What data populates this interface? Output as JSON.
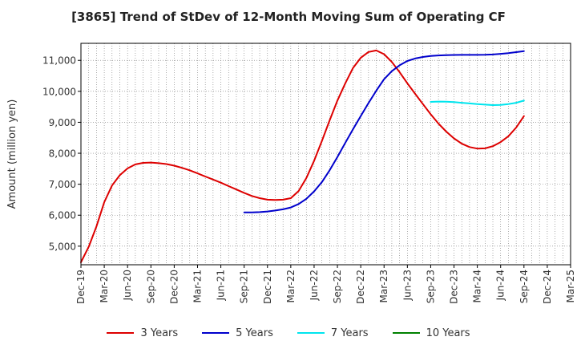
{
  "chart_data": {
    "type": "line",
    "title": "[3865]  Trend of StDev of 12-Month Moving Sum of Operating CF",
    "xlabel": "",
    "ylabel": "Amount (million yen)",
    "ylim": [
      4400,
      11550
    ],
    "xlim": [
      "2019-12",
      "2025-03"
    ],
    "y_ticks": [
      5000,
      6000,
      7000,
      8000,
      9000,
      10000,
      11000
    ],
    "y_tick_labels": [
      "5,000",
      "6,000",
      "7,000",
      "8,000",
      "9,000",
      "10,000",
      "11,000"
    ],
    "x_tick_labels": [
      "Dec-19",
      "Mar-20",
      "Jun-20",
      "Sep-20",
      "Dec-20",
      "Mar-21",
      "Jun-21",
      "Sep-21",
      "Dec-21",
      "Mar-22",
      "Jun-22",
      "Sep-22",
      "Dec-22",
      "Mar-23",
      "Jun-23",
      "Sep-23",
      "Dec-23",
      "Mar-24",
      "Jun-24",
      "Sep-24",
      "Dec-24",
      "Mar-25"
    ],
    "grid": true,
    "legend_position": "bottom",
    "series": [
      {
        "name": "3 Years",
        "color": "#dd0000",
        "points": [
          [
            "2019-12",
            4480
          ],
          [
            "2020-01",
            4980
          ],
          [
            "2020-02",
            5640
          ],
          [
            "2020-03",
            6420
          ],
          [
            "2020-04",
            6960
          ],
          [
            "2020-05",
            7290
          ],
          [
            "2020-06",
            7510
          ],
          [
            "2020-07",
            7640
          ],
          [
            "2020-08",
            7690
          ],
          [
            "2020-09",
            7700
          ],
          [
            "2020-10",
            7680
          ],
          [
            "2020-11",
            7650
          ],
          [
            "2020-12",
            7600
          ],
          [
            "2021-01",
            7530
          ],
          [
            "2021-02",
            7450
          ],
          [
            "2021-03",
            7350
          ],
          [
            "2021-04",
            7250
          ],
          [
            "2021-05",
            7150
          ],
          [
            "2021-06",
            7050
          ],
          [
            "2021-07",
            6940
          ],
          [
            "2021-08",
            6830
          ],
          [
            "2021-09",
            6720
          ],
          [
            "2021-10",
            6620
          ],
          [
            "2021-11",
            6550
          ],
          [
            "2021-12",
            6500
          ],
          [
            "2022-01",
            6490
          ],
          [
            "2022-02",
            6500
          ],
          [
            "2022-03",
            6550
          ],
          [
            "2022-04",
            6780
          ],
          [
            "2022-05",
            7200
          ],
          [
            "2022-06",
            7760
          ],
          [
            "2022-07",
            8400
          ],
          [
            "2022-08",
            9060
          ],
          [
            "2022-09",
            9700
          ],
          [
            "2022-10",
            10250
          ],
          [
            "2022-11",
            10750
          ],
          [
            "2022-12",
            11080
          ],
          [
            "2023-01",
            11270
          ],
          [
            "2023-02",
            11320
          ],
          [
            "2023-03",
            11200
          ],
          [
            "2023-04",
            10950
          ],
          [
            "2023-05",
            10620
          ],
          [
            "2023-06",
            10260
          ],
          [
            "2023-07",
            9920
          ],
          [
            "2023-08",
            9590
          ],
          [
            "2023-09",
            9260
          ],
          [
            "2023-10",
            8960
          ],
          [
            "2023-11",
            8700
          ],
          [
            "2023-12",
            8480
          ],
          [
            "2024-01",
            8310
          ],
          [
            "2024-02",
            8200
          ],
          [
            "2024-03",
            8150
          ],
          [
            "2024-04",
            8160
          ],
          [
            "2024-05",
            8230
          ],
          [
            "2024-06",
            8360
          ],
          [
            "2024-07",
            8550
          ],
          [
            "2024-08",
            8830
          ],
          [
            "2024-09",
            9200
          ]
        ]
      },
      {
        "name": "5 Years",
        "color": "#0000cc",
        "points": [
          [
            "2021-09",
            6090
          ],
          [
            "2021-10",
            6090
          ],
          [
            "2021-11",
            6100
          ],
          [
            "2021-12",
            6120
          ],
          [
            "2022-01",
            6150
          ],
          [
            "2022-02",
            6190
          ],
          [
            "2022-03",
            6250
          ],
          [
            "2022-04",
            6360
          ],
          [
            "2022-05",
            6530
          ],
          [
            "2022-06",
            6770
          ],
          [
            "2022-07",
            7070
          ],
          [
            "2022-08",
            7450
          ],
          [
            "2022-09",
            7880
          ],
          [
            "2022-10",
            8330
          ],
          [
            "2022-11",
            8770
          ],
          [
            "2022-12",
            9200
          ],
          [
            "2023-01",
            9620
          ],
          [
            "2023-02",
            10020
          ],
          [
            "2023-03",
            10390
          ],
          [
            "2023-04",
            10650
          ],
          [
            "2023-05",
            10840
          ],
          [
            "2023-06",
            10980
          ],
          [
            "2023-07",
            11060
          ],
          [
            "2023-08",
            11110
          ],
          [
            "2023-09",
            11140
          ],
          [
            "2023-10",
            11160
          ],
          [
            "2023-11",
            11170
          ],
          [
            "2023-12",
            11175
          ],
          [
            "2024-01",
            11178
          ],
          [
            "2024-02",
            11178
          ],
          [
            "2024-03",
            11178
          ],
          [
            "2024-04",
            11180
          ],
          [
            "2024-05",
            11190
          ],
          [
            "2024-06",
            11210
          ],
          [
            "2024-07",
            11235
          ],
          [
            "2024-08",
            11265
          ],
          [
            "2024-09",
            11300
          ]
        ]
      },
      {
        "name": "7 Years",
        "color": "#00e5ee",
        "points": [
          [
            "2023-09",
            9660
          ],
          [
            "2023-10",
            9670
          ],
          [
            "2023-11",
            9665
          ],
          [
            "2023-12",
            9650
          ],
          [
            "2024-01",
            9630
          ],
          [
            "2024-02",
            9610
          ],
          [
            "2024-03",
            9590
          ],
          [
            "2024-04",
            9570
          ],
          [
            "2024-05",
            9555
          ],
          [
            "2024-06",
            9560
          ],
          [
            "2024-07",
            9590
          ],
          [
            "2024-08",
            9630
          ],
          [
            "2024-09",
            9700
          ]
        ]
      },
      {
        "name": "10 Years",
        "color": "#008000",
        "points": []
      }
    ]
  }
}
